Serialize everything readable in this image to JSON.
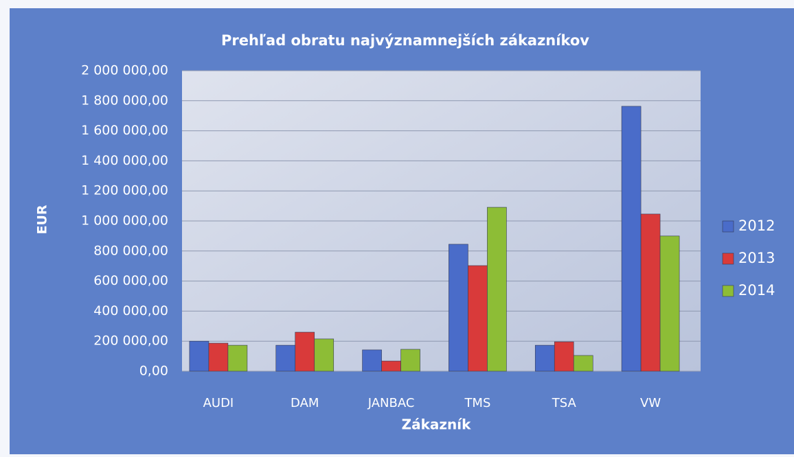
{
  "chart_data": {
    "type": "bar",
    "title": "Prehľad obratu najvýznamnejších zákazníkov",
    "x_label": "Zákazník",
    "y_label": "EUR",
    "categories": [
      "AUDI",
      "DAM",
      "JANBAC",
      "TMS",
      "TSA",
      "VW"
    ],
    "series": [
      {
        "name": "2012",
        "color": "#4a6cc9",
        "values": [
          200000,
          173000,
          142000,
          845000,
          173000,
          1763000
        ]
      },
      {
        "name": "2013",
        "color": "#d93a3a",
        "values": [
          187000,
          260000,
          68000,
          703000,
          196000,
          1046000
        ]
      },
      {
        "name": "2014",
        "color": "#8dbd36",
        "values": [
          173000,
          215000,
          146000,
          1091000,
          105000,
          900000
        ]
      }
    ],
    "ylim": [
      0,
      2000000
    ],
    "yticks": [
      {
        "value": 0,
        "label": "0,00"
      },
      {
        "value": 200000,
        "label": "200 000,00"
      },
      {
        "value": 400000,
        "label": "400 000,00"
      },
      {
        "value": 600000,
        "label": "600 000,00"
      },
      {
        "value": 800000,
        "label": "800 000,00"
      },
      {
        "value": 1000000,
        "label": "1 000 000,00"
      },
      {
        "value": 1200000,
        "label": "1 200 000,00"
      },
      {
        "value": 1400000,
        "label": "1 400 000,00"
      },
      {
        "value": 1600000,
        "label": "1 600 000,00"
      },
      {
        "value": 1800000,
        "label": "1 800 000,00"
      },
      {
        "value": 2000000,
        "label": "2 000 000,00"
      }
    ],
    "grid": true,
    "legend": "right"
  }
}
